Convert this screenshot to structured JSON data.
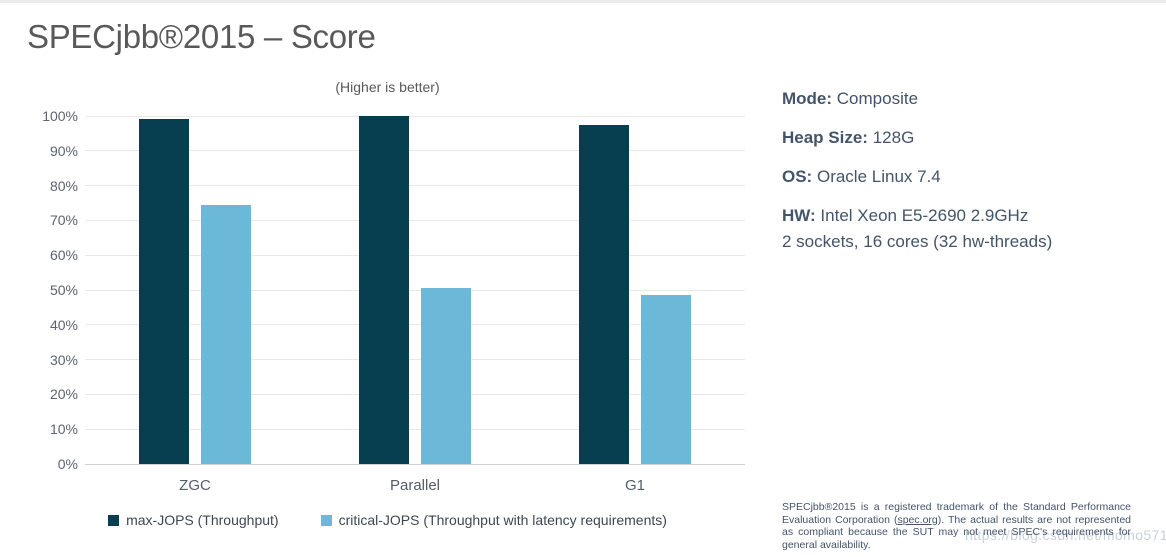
{
  "header": {
    "title": "SPECjbb®2015 – Score"
  },
  "chart_data": {
    "type": "bar",
    "title": "(Higher is better)",
    "categories": [
      "ZGC",
      "Parallel",
      "G1"
    ],
    "series": [
      {
        "name": "max-JOPS (Throughput)",
        "color": "#073F50",
        "values": [
          99,
          100,
          97.5
        ]
      },
      {
        "name": "critical-JOPS (Throughput with latency requirements)",
        "color": "#6CB8D8",
        "values": [
          74.5,
          50.5,
          48.5
        ]
      }
    ],
    "xlabel": "",
    "ylabel": "",
    "ylim": [
      0,
      100
    ],
    "yticks": [
      "0%",
      "10%",
      "20%",
      "30%",
      "40%",
      "50%",
      "60%",
      "70%",
      "80%",
      "90%",
      "100%"
    ],
    "grid": true,
    "legend_position": "bottom"
  },
  "specs": {
    "items": [
      {
        "label": "Mode:",
        "value": "Composite",
        "extra": ""
      },
      {
        "label": "Heap Size:",
        "value": "128G",
        "extra": ""
      },
      {
        "label": "OS:",
        "value": "Oracle Linux 7.4",
        "extra": ""
      },
      {
        "label": "HW:",
        "value": "Intel Xeon E5-2690 2.9GHz",
        "extra": "2 sockets, 16 cores (32 hw-threads)"
      }
    ]
  },
  "disclaimer": {
    "text_before_link": "SPECjbb®2015 is a registered trademark of the Standard Performance Evaluation Corporation (",
    "link_text": "spec.org",
    "text_after_link": "). The actual results are not represented as compliant because the SUT may not meet SPEC's requirements for general availability."
  },
  "watermark": {
    "text": "https://blog.csdn.net/momo571"
  },
  "colors": {
    "bar_dark": "#073F50",
    "bar_light": "#6CB8D8",
    "panel_text": "#44546A",
    "title_text": "#595959"
  }
}
